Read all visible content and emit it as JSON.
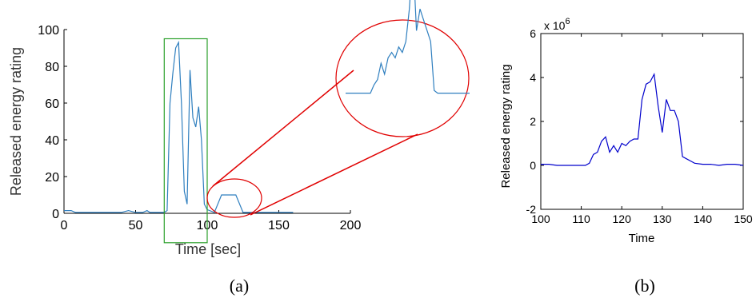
{
  "chart_data": [
    {
      "type": "line",
      "panel_label": "(a)",
      "xlabel": "Time [sec]",
      "ylabel": "Released energy rating",
      "xlim": [
        0,
        200
      ],
      "ylim": [
        0,
        100
      ],
      "xticks": [
        "0",
        "50",
        "100",
        "150",
        "200"
      ],
      "yticks": [
        "0",
        "20",
        "40",
        "60",
        "80",
        "100"
      ],
      "series_color": "#2f7fbf",
      "highlight_box": {
        "x_range": [
          70,
          100
        ],
        "y_range": [
          -16,
          95
        ],
        "color": "#2ca02c"
      },
      "zoom_circle": {
        "center": [
          115,
          7
        ],
        "color": "#e00000"
      },
      "x": [
        0,
        5,
        8,
        30,
        40,
        45,
        50,
        55,
        58,
        60,
        65,
        70,
        72,
        74,
        76,
        78,
        80,
        82,
        84,
        86,
        88,
        90,
        92,
        94,
        96,
        98,
        100,
        105,
        110,
        115,
        120,
        125,
        130,
        150,
        160
      ],
      "y": [
        1.5,
        1.5,
        0.5,
        0.5,
        0.5,
        1.5,
        0.5,
        0.5,
        1.5,
        0.5,
        0.5,
        0.5,
        1.5,
        60,
        76,
        90,
        93,
        60,
        12,
        5,
        78,
        52,
        47,
        58,
        40,
        5,
        2,
        0.5,
        10,
        10,
        10,
        0.5,
        0.5,
        0.5,
        0.5
      ]
    },
    {
      "type": "line",
      "panel_label": "(b)",
      "xlabel": "Time",
      "ylabel": "Released energy rating",
      "exponent_label": "x 10",
      "exponent_power": "6",
      "xlim": [
        100,
        150
      ],
      "ylim": [
        -2,
        6
      ],
      "xticks": [
        "100",
        "110",
        "120",
        "130",
        "140",
        "150"
      ],
      "yticks": [
        "-2",
        "0",
        "2",
        "4",
        "6"
      ],
      "series_color": "#0000cc",
      "x": [
        100,
        102,
        104,
        106,
        108,
        110,
        111,
        112,
        113,
        114,
        115,
        116,
        117,
        118,
        119,
        120,
        121,
        122,
        123,
        124,
        125,
        126,
        127,
        128,
        129,
        130,
        131,
        132,
        133,
        134,
        135,
        136,
        137,
        138,
        140,
        142,
        144,
        146,
        148,
        150
      ],
      "y": [
        0.05,
        0.05,
        0.0,
        0.0,
        0.0,
        0.0,
        0.0,
        0.1,
        0.5,
        0.6,
        1.1,
        1.3,
        0.6,
        0.9,
        0.6,
        1.0,
        0.9,
        1.1,
        1.2,
        1.2,
        3.0,
        3.7,
        3.8,
        4.15,
        2.7,
        1.5,
        3.0,
        2.5,
        2.5,
        2.0,
        0.4,
        0.3,
        0.2,
        0.1,
        0.05,
        0.05,
        0.0,
        0.05,
        0.05,
        0.0
      ]
    }
  ]
}
